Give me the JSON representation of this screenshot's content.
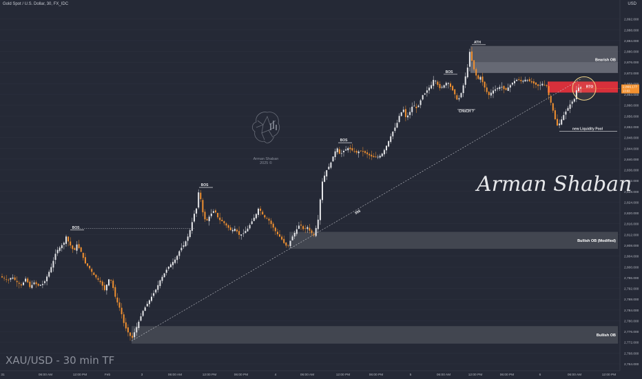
{
  "header": {
    "title": "Gold Spot / U.S. Dollar, 30, FX_IDC",
    "currency": "USD"
  },
  "timeframe_label": "XAU/USD - 30 min TF",
  "signature": "Arman Shaban",
  "logo": {
    "name": "Arman Shaban",
    "year": "2025 ©"
  },
  "price_badge": {
    "price": "2,866.177",
    "sub": "13:03"
  },
  "colors": {
    "background": "#252936",
    "bull": "#e6e7ea",
    "bear": "#f29130",
    "zone": "#4a4d58",
    "bearish_ob": "#646772",
    "red_zone": "#e0303c",
    "grid": "#2f3340",
    "axis_text": "#b6b9c2"
  },
  "chart_data": {
    "type": "candlestick",
    "title": "Gold Spot / U.S. Dollar, 30, FX_IDC",
    "ylim": [
      2764,
      2896
    ],
    "y_ticks": [
      "2,764.000",
      "2,768.000",
      "2,772.000",
      "2,776.000",
      "2,780.000",
      "2,784.000",
      "2,788.000",
      "2,792.000",
      "2,796.000",
      "2,800.000",
      "2,804.000",
      "2,808.000",
      "2,812.000",
      "2,816.000",
      "2,820.000",
      "2,824.000",
      "2,828.000",
      "2,832.000",
      "2,836.000",
      "2,840.000",
      "2,844.000",
      "2,848.000",
      "2,852.000",
      "2,856.000",
      "2,860.000",
      "2,864.000",
      "2,868.000",
      "2,872.000",
      "2,876.000",
      "2,880.000",
      "2,884.000",
      "2,888.000",
      "2,892.000"
    ],
    "x_ticks": [
      "31",
      "06:00 AM",
      "12:00 PM",
      "Feb",
      "3",
      "06:00 AM",
      "12:00 PM",
      "06:00 PM",
      "4",
      "06:00 AM",
      "12:00 PM",
      "06:00 PM",
      "5",
      "06:00 AM",
      "12:00 PM",
      "06:00 PM",
      "6",
      "06:00 AM",
      "12:00 PM"
    ],
    "price_path": [
      [
        0,
        2796.5
      ],
      [
        6,
        2795.8
      ],
      [
        12,
        2795
      ],
      [
        18,
        2796.3
      ],
      [
        24,
        2794.6
      ],
      [
        32,
        2793
      ],
      [
        38,
        2795.8
      ],
      [
        44,
        2792.4
      ],
      [
        50,
        2794.2
      ],
      [
        56,
        2793
      ],
      [
        64,
        2793.8
      ],
      [
        70,
        2797.2
      ],
      [
        76,
        2800.6
      ],
      [
        82,
        2805.7
      ],
      [
        88,
        2807.4
      ],
      [
        94,
        2809.1
      ],
      [
        97,
        2811.7
      ],
      [
        100,
        2809.1
      ],
      [
        104,
        2807.4
      ],
      [
        108,
        2805.7
      ],
      [
        112,
        2808.3
      ],
      [
        118,
        2805.7
      ],
      [
        124,
        2801.4
      ],
      [
        130,
        2799.7
      ],
      [
        136,
        2797.2
      ],
      [
        142,
        2795.5
      ],
      [
        148,
        2793.8
      ],
      [
        152,
        2791.2
      ],
      [
        156,
        2793.8
      ],
      [
        160,
        2796.3
      ],
      [
        164,
        2792.9
      ],
      [
        168,
        2788.7
      ],
      [
        172,
        2786.1
      ],
      [
        176,
        2783.6
      ],
      [
        180,
        2779.3
      ],
      [
        184,
        2776.7
      ],
      [
        188,
        2775
      ],
      [
        192,
        2773.3
      ],
      [
        196,
        2775.9
      ],
      [
        200,
        2778.4
      ],
      [
        204,
        2781
      ],
      [
        208,
        2783.6
      ],
      [
        212,
        2785.3
      ],
      [
        216,
        2787
      ],
      [
        220,
        2788.7
      ],
      [
        224,
        2790.4
      ],
      [
        228,
        2792.1
      ],
      [
        232,
        2794.6
      ],
      [
        236,
        2796.3
      ],
      [
        240,
        2798
      ],
      [
        244,
        2799.7
      ],
      [
        250,
        2801.4
      ],
      [
        256,
        2803.1
      ],
      [
        262,
        2806.5
      ],
      [
        268,
        2808.3
      ],
      [
        274,
        2811.7
      ],
      [
        278,
        2815.1
      ],
      [
        282,
        2819.4
      ],
      [
        286,
        2821.9
      ],
      [
        289,
        2828.3
      ],
      [
        292,
        2824.9
      ],
      [
        296,
        2818.5
      ],
      [
        300,
        2816.8
      ],
      [
        306,
        2819.4
      ],
      [
        312,
        2821.1
      ],
      [
        318,
        2817.6
      ],
      [
        324,
        2816.8
      ],
      [
        330,
        2815.1
      ],
      [
        336,
        2813.4
      ],
      [
        342,
        2814.2
      ],
      [
        348,
        2811.7
      ],
      [
        354,
        2812.5
      ],
      [
        360,
        2814.2
      ],
      [
        366,
        2816.8
      ],
      [
        372,
        2819.4
      ],
      [
        376,
        2821.9
      ],
      [
        380,
        2820.2
      ],
      [
        384,
        2818.5
      ],
      [
        390,
        2817.6
      ],
      [
        396,
        2815.1
      ],
      [
        402,
        2812.5
      ],
      [
        408,
        2810.8
      ],
      [
        414,
        2808.3
      ],
      [
        418,
        2807.4
      ],
      [
        424,
        2810.8
      ],
      [
        430,
        2813.4
      ],
      [
        436,
        2816
      ],
      [
        442,
        2813.4
      ],
      [
        446,
        2815.1
      ],
      [
        450,
        2813.4
      ],
      [
        456,
        2811.7
      ],
      [
        462,
        2816.8
      ],
      [
        468,
        2831.3
      ],
      [
        474,
        2835.6
      ],
      [
        480,
        2838.1
      ],
      [
        486,
        2842.4
      ],
      [
        490,
        2844.1
      ],
      [
        494,
        2841.5
      ],
      [
        500,
        2843.2
      ],
      [
        506,
        2844.1
      ],
      [
        512,
        2843.2
      ],
      [
        518,
        2842.4
      ],
      [
        524,
        2843.2
      ],
      [
        530,
        2842.4
      ],
      [
        536,
        2841.5
      ],
      [
        542,
        2840.7
      ],
      [
        548,
        2840.7
      ],
      [
        554,
        2841.5
      ],
      [
        560,
        2844.1
      ],
      [
        566,
        2847.5
      ],
      [
        572,
        2850.9
      ],
      [
        576,
        2852.6
      ],
      [
        580,
        2856
      ],
      [
        586,
        2858.6
      ],
      [
        590,
        2855.1
      ],
      [
        596,
        2857.7
      ],
      [
        600,
        2860.3
      ],
      [
        606,
        2858.6
      ],
      [
        610,
        2861.1
      ],
      [
        614,
        2863.7
      ],
      [
        618,
        2864.5
      ],
      [
        622,
        2866.2
      ],
      [
        626,
        2867.1
      ],
      [
        630,
        2869.6
      ],
      [
        634,
        2868.8
      ],
      [
        638,
        2866.2
      ],
      [
        644,
        2867.1
      ],
      [
        650,
        2868.8
      ],
      [
        656,
        2866.2
      ],
      [
        660,
        2864.5
      ],
      [
        664,
        2862
      ],
      [
        668,
        2862.8
      ],
      [
        672,
        2866.2
      ],
      [
        676,
        2870.5
      ],
      [
        680,
        2874.7
      ],
      [
        683,
        2881.1
      ],
      [
        686,
        2875.6
      ],
      [
        690,
        2872.1
      ],
      [
        694,
        2869.6
      ],
      [
        698,
        2870.5
      ],
      [
        702,
        2867.9
      ],
      [
        706,
        2865.4
      ],
      [
        710,
        2863.7
      ],
      [
        716,
        2865.4
      ],
      [
        722,
        2866.2
      ],
      [
        728,
        2867.1
      ],
      [
        734,
        2865.4
      ],
      [
        740,
        2867.1
      ],
      [
        746,
        2868.8
      ],
      [
        752,
        2869.6
      ],
      [
        758,
        2868.8
      ],
      [
        764,
        2869.6
      ],
      [
        770,
        2868.8
      ],
      [
        776,
        2868
      ],
      [
        782,
        2867.1
      ],
      [
        788,
        2868
      ],
      [
        794,
        2867.1
      ],
      [
        798,
        2862.8
      ],
      [
        802,
        2859.4
      ],
      [
        806,
        2855.1
      ],
      [
        810,
        2852.1
      ],
      [
        814,
        2853.8
      ],
      [
        818,
        2856
      ],
      [
        822,
        2857.7
      ],
      [
        826,
        2859.4
      ],
      [
        830,
        2861.1
      ],
      [
        834,
        2862
      ],
      [
        838,
        2866.2
      ],
      [
        842,
        2866.7
      ]
    ],
    "zones": [
      {
        "label": "Bearish OB",
        "x_from": 683,
        "x_to": 897,
        "price_top": 2882,
        "price_bottom": 2872,
        "style": "bearish_ob"
      },
      {
        "label": "RTO",
        "x_from": 795,
        "x_to": 897,
        "price_top": 2868.8,
        "price_bottom": 2864.7,
        "style": "red"
      },
      {
        "label": "Bullish OB (Modified)",
        "x_from": 420,
        "x_to": 897,
        "price_top": 2813,
        "price_bottom": 2806.7,
        "style": "zone"
      },
      {
        "label": "Bullish OB",
        "x_from": 191,
        "x_to": 897,
        "price_top": 2778,
        "price_bottom": 2771.5,
        "style": "zone"
      }
    ],
    "annotations": [
      {
        "text": "BOS",
        "x": 110,
        "price": 2814.2
      },
      {
        "text": "BOS",
        "x": 297,
        "price": 2830
      },
      {
        "text": "BOS",
        "x": 499,
        "price": 2846.6
      },
      {
        "text": "BOS",
        "x": 652,
        "price": 2872
      },
      {
        "text": "ATH",
        "x": 693,
        "price": 2883
      },
      {
        "text": "CHoCH ?",
        "x": 677,
        "price": 2857.4
      },
      {
        "text": "new Liquidity Pool",
        "x": 853,
        "price": 2850.9
      },
      {
        "text": "$$$",
        "x": 520,
        "price": 2820
      }
    ],
    "liquidity_line": {
      "x_from": 191,
      "price_from": 2772.5,
      "x_to": 843,
      "price_to": 2869.7
    },
    "last_price": 2866.177
  }
}
